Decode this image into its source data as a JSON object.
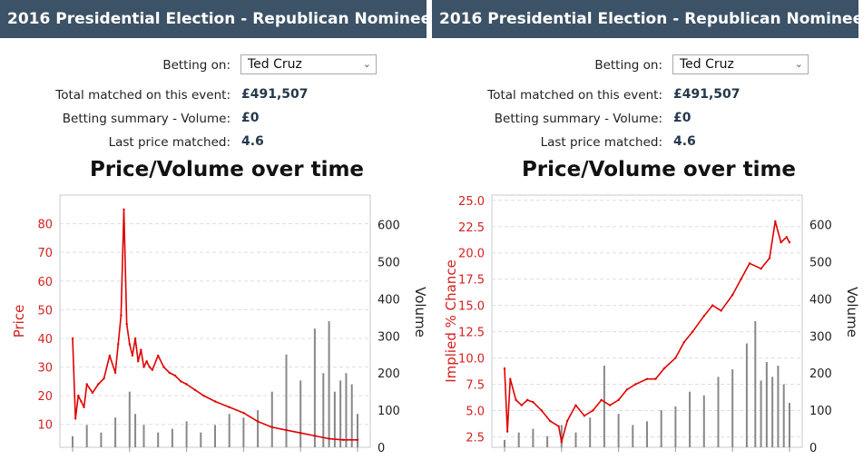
{
  "panels": [
    {
      "header": "2016 Presidential Election - Republican Nominee",
      "betting_on_label": "Betting on:",
      "betting_on_value": "Ted Cruz",
      "total_matched_label": "Total matched on this event:",
      "total_matched_value": "£491,507",
      "volume_label": "Betting summary - Volume:",
      "volume_value": "£0",
      "last_price_label": "Last price matched:",
      "last_price_value": "4.6",
      "chart_title": "Price/Volume over time"
    },
    {
      "header": "2016 Presidential Election - Republican Nominee",
      "betting_on_label": "Betting on:",
      "betting_on_value": "Ted Cruz",
      "total_matched_label": "Total matched on this event:",
      "total_matched_value": "£491,507",
      "volume_label": "Betting summary - Volume:",
      "volume_value": "£0",
      "last_price_label": "Last price matched:",
      "last_price_value": "4.6",
      "chart_title": "Price/Volume over time"
    }
  ],
  "colors": {
    "header_bg": "#3c5266",
    "price_line": "#e00000",
    "volume_bar": "#888888",
    "left_axis": "#d62020",
    "right_axis": "#222222"
  },
  "chart_data": [
    {
      "type": "line",
      "title": "Price/Volume over time",
      "xlabel": "",
      "ylabel": "Price",
      "y2label": "Volume",
      "ylim": [
        2,
        90
      ],
      "y2lim": [
        0,
        680
      ],
      "yticks": [
        10,
        20,
        30,
        40,
        50,
        60,
        70,
        80
      ],
      "y2ticks": [
        0,
        100,
        200,
        300,
        400,
        500,
        600
      ],
      "grid": true,
      "series": [
        {
          "name": "Price",
          "axis": "left",
          "x": [
            0,
            1,
            2,
            3,
            4,
            5,
            7,
            9,
            11,
            13,
            15,
            16,
            17,
            18,
            19,
            20,
            21,
            22,
            23,
            24,
            25,
            26,
            27,
            28,
            30,
            32,
            34,
            36,
            38,
            40,
            43,
            46,
            50,
            55,
            60,
            65,
            70,
            75,
            80,
            85,
            90,
            95,
            100
          ],
          "values": [
            40,
            12,
            20,
            18,
            16,
            24,
            21,
            24,
            26,
            34,
            28,
            38,
            48,
            85,
            45,
            38,
            34,
            40,
            32,
            36,
            30,
            32,
            30,
            29,
            34,
            30,
            28,
            27,
            25,
            24,
            22,
            20,
            18,
            16,
            14,
            11,
            9,
            8,
            7,
            6,
            5,
            4.6,
            4.6
          ]
        },
        {
          "name": "Volume",
          "axis": "right",
          "x": [
            0,
            5,
            10,
            15,
            20,
            22,
            25,
            30,
            35,
            40,
            45,
            50,
            55,
            60,
            65,
            70,
            75,
            80,
            85,
            88,
            90,
            92,
            94,
            96,
            98,
            100
          ],
          "values": [
            30,
            60,
            40,
            80,
            150,
            90,
            60,
            40,
            50,
            70,
            40,
            60,
            90,
            80,
            100,
            150,
            250,
            180,
            320,
            200,
            340,
            150,
            180,
            200,
            170,
            90
          ]
        }
      ]
    },
    {
      "type": "line",
      "title": "Price/Volume over time",
      "xlabel": "",
      "ylabel": "Implied % Chance",
      "y2label": "Volume",
      "ylim": [
        1.5,
        25.5
      ],
      "y2lim": [
        0,
        680
      ],
      "yticks": [
        2.5,
        5.0,
        7.5,
        10.0,
        12.5,
        15.0,
        17.5,
        20.0,
        22.5,
        25.0
      ],
      "y2ticks": [
        0,
        100,
        200,
        300,
        400,
        500,
        600
      ],
      "grid": true,
      "series": [
        {
          "name": "Implied % Chance",
          "axis": "left",
          "x": [
            0,
            1,
            2,
            4,
            6,
            8,
            10,
            13,
            16,
            19,
            20,
            22,
            25,
            28,
            31,
            34,
            37,
            40,
            43,
            46,
            50,
            53,
            56,
            60,
            63,
            66,
            70,
            73,
            76,
            80,
            83,
            86,
            90,
            93,
            95,
            97,
            99,
            100
          ],
          "values": [
            9,
            3,
            8,
            6,
            5.5,
            6,
            5.8,
            5,
            4,
            3.5,
            2,
            4,
            5.5,
            4.5,
            5,
            6,
            5.5,
            6,
            7,
            7.5,
            8,
            8,
            9,
            10,
            11.5,
            12.5,
            14,
            15,
            14.5,
            16,
            17.5,
            19,
            18.5,
            19.5,
            23,
            21,
            21.5,
            21
          ]
        },
        {
          "name": "Volume",
          "axis": "right",
          "x": [
            0,
            5,
            10,
            15,
            20,
            25,
            30,
            35,
            40,
            45,
            50,
            55,
            60,
            65,
            70,
            75,
            80,
            85,
            88,
            90,
            92,
            94,
            96,
            98,
            100
          ],
          "values": [
            20,
            40,
            50,
            30,
            60,
            40,
            80,
            220,
            90,
            60,
            70,
            100,
            110,
            150,
            140,
            190,
            210,
            280,
            340,
            180,
            230,
            190,
            220,
            170,
            120
          ]
        }
      ]
    }
  ]
}
